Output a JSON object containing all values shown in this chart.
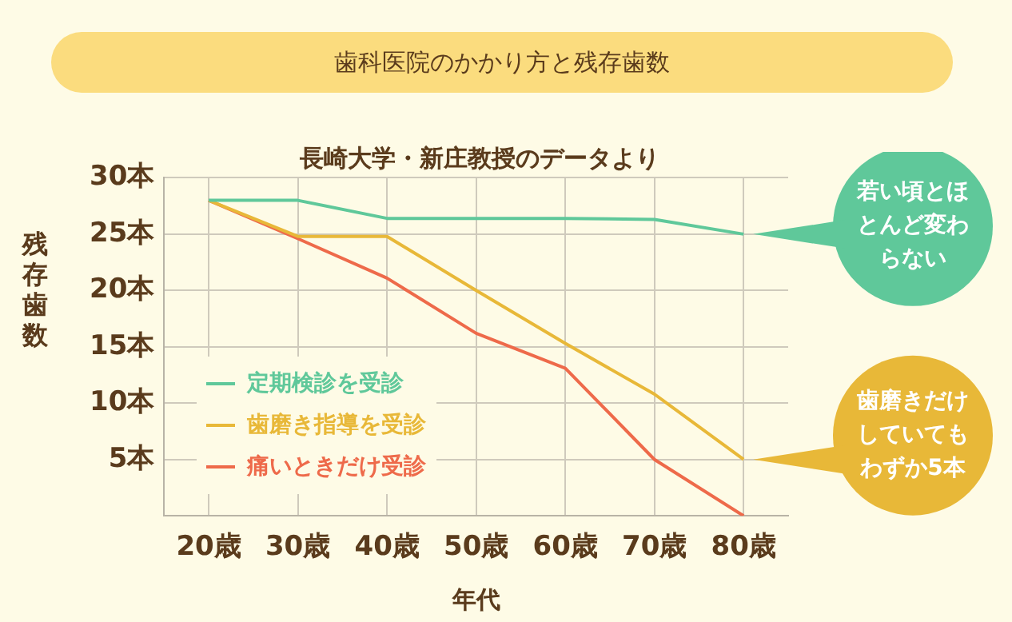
{
  "chart_data": {
    "type": "line",
    "title": "歯科医院のかかり方と残存歯数",
    "subtitle": "長崎大学・新庄教授のデータより",
    "xlabel": "年代",
    "ylabel": "残存歯数",
    "categories": [
      "20歳",
      "30歳",
      "40歳",
      "50歳",
      "60歳",
      "70歳",
      "80歳"
    ],
    "series": [
      {
        "name": "定期検診を受診",
        "color": "#5fc89a",
        "values": [
          28,
          28,
          26.4,
          26.4,
          26.4,
          26.3,
          25
        ]
      },
      {
        "name": "歯磨き指導を受診",
        "color": "#e8b838",
        "values": [
          28,
          24.8,
          24.8,
          20,
          15.3,
          10.8,
          5
        ]
      },
      {
        "name": "痛いときだけ受診",
        "color": "#ee6a4a",
        "values": [
          28,
          24.6,
          21.1,
          16.2,
          13.1,
          5,
          0
        ]
      }
    ],
    "ylim": [
      0,
      30
    ],
    "yticks": [
      {
        "value": 0,
        "label": null
      },
      {
        "value": 5,
        "label": "5本"
      },
      {
        "value": 10,
        "label": "10本"
      },
      {
        "value": 15,
        "label": "15本"
      },
      {
        "value": 20,
        "label": "20本"
      },
      {
        "value": 25,
        "label": "25本"
      },
      {
        "value": 30,
        "label": "30本"
      }
    ],
    "grid": true,
    "legend": "bottom left",
    "marker": "none",
    "line_style": "solid",
    "annotations": [
      {
        "text": "若い頃とほとんど変わらない",
        "x": "80歳",
        "y": 25
      },
      {
        "text": "歯磨きだけしていてもわずか5本",
        "x": "80歳",
        "y": 5
      }
    ]
  }
}
